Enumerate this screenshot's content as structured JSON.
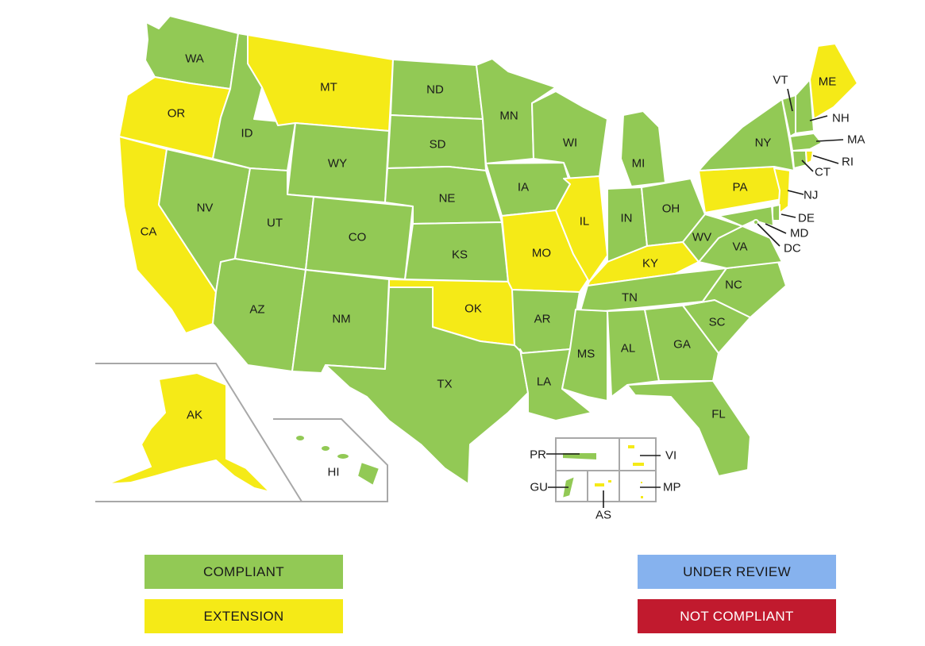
{
  "colors": {
    "compliant": "#92c955",
    "extension": "#f5ea17",
    "under_review": "#86b2ee",
    "not_compliant": "#c11a2e"
  },
  "states": {
    "WA": "compliant",
    "OR": "extension",
    "CA": "extension",
    "NV": "compliant",
    "ID": "compliant",
    "MT": "extension",
    "WY": "compliant",
    "UT": "compliant",
    "AZ": "compliant",
    "CO": "compliant",
    "NM": "compliant",
    "ND": "compliant",
    "SD": "compliant",
    "NE": "compliant",
    "KS": "compliant",
    "OK": "extension",
    "TX": "compliant",
    "MN": "compliant",
    "IA": "compliant",
    "MO": "extension",
    "AR": "compliant",
    "LA": "compliant",
    "WI": "compliant",
    "IL": "extension",
    "MI": "compliant",
    "IN": "compliant",
    "OH": "compliant",
    "KY": "extension",
    "TN": "compliant",
    "MS": "compliant",
    "AL": "compliant",
    "GA": "compliant",
    "FL": "compliant",
    "SC": "compliant",
    "NC": "compliant",
    "VA": "compliant",
    "WV": "compliant",
    "PA": "extension",
    "NY": "compliant",
    "VT": "compliant",
    "NH": "compliant",
    "ME": "extension",
    "MA": "compliant",
    "RI": "extension",
    "CT": "compliant",
    "NJ": "extension",
    "DE": "compliant",
    "MD": "compliant",
    "DC": "compliant",
    "AK": "extension",
    "HI": "compliant",
    "PR": "compliant",
    "VI": "extension",
    "GU": "compliant",
    "AS": "extension",
    "MP": "extension"
  },
  "labels": {
    "WA": "WA",
    "OR": "OR",
    "CA": "CA",
    "NV": "NV",
    "ID": "ID",
    "MT": "MT",
    "WY": "WY",
    "UT": "UT",
    "AZ": "AZ",
    "CO": "CO",
    "NM": "NM",
    "ND": "ND",
    "SD": "SD",
    "NE": "NE",
    "KS": "KS",
    "OK": "OK",
    "TX": "TX",
    "MN": "MN",
    "IA": "IA",
    "MO": "MO",
    "AR": "AR",
    "LA": "LA",
    "WI": "WI",
    "IL": "IL",
    "MI": "MI",
    "IN": "IN",
    "OH": "OH",
    "KY": "KY",
    "TN": "TN",
    "MS": "MS",
    "AL": "AL",
    "GA": "GA",
    "FL": "FL",
    "SC": "SC",
    "NC": "NC",
    "VA": "VA",
    "WV": "WV",
    "PA": "PA",
    "NY": "NY",
    "VT": "VT",
    "NH": "NH",
    "ME": "ME",
    "MA": "MA",
    "RI": "RI",
    "CT": "CT",
    "NJ": "NJ",
    "DE": "DE",
    "MD": "MD",
    "DC": "DC",
    "AK": "AK",
    "HI": "HI",
    "PR": "PR",
    "VI": "VI",
    "GU": "GU",
    "AS": "AS",
    "MP": "MP"
  },
  "legend": {
    "compliant": "COMPLIANT",
    "extension": "EXTENSION",
    "under_review": "UNDER REVIEW",
    "not_compliant": "NOT COMPLIANT"
  }
}
